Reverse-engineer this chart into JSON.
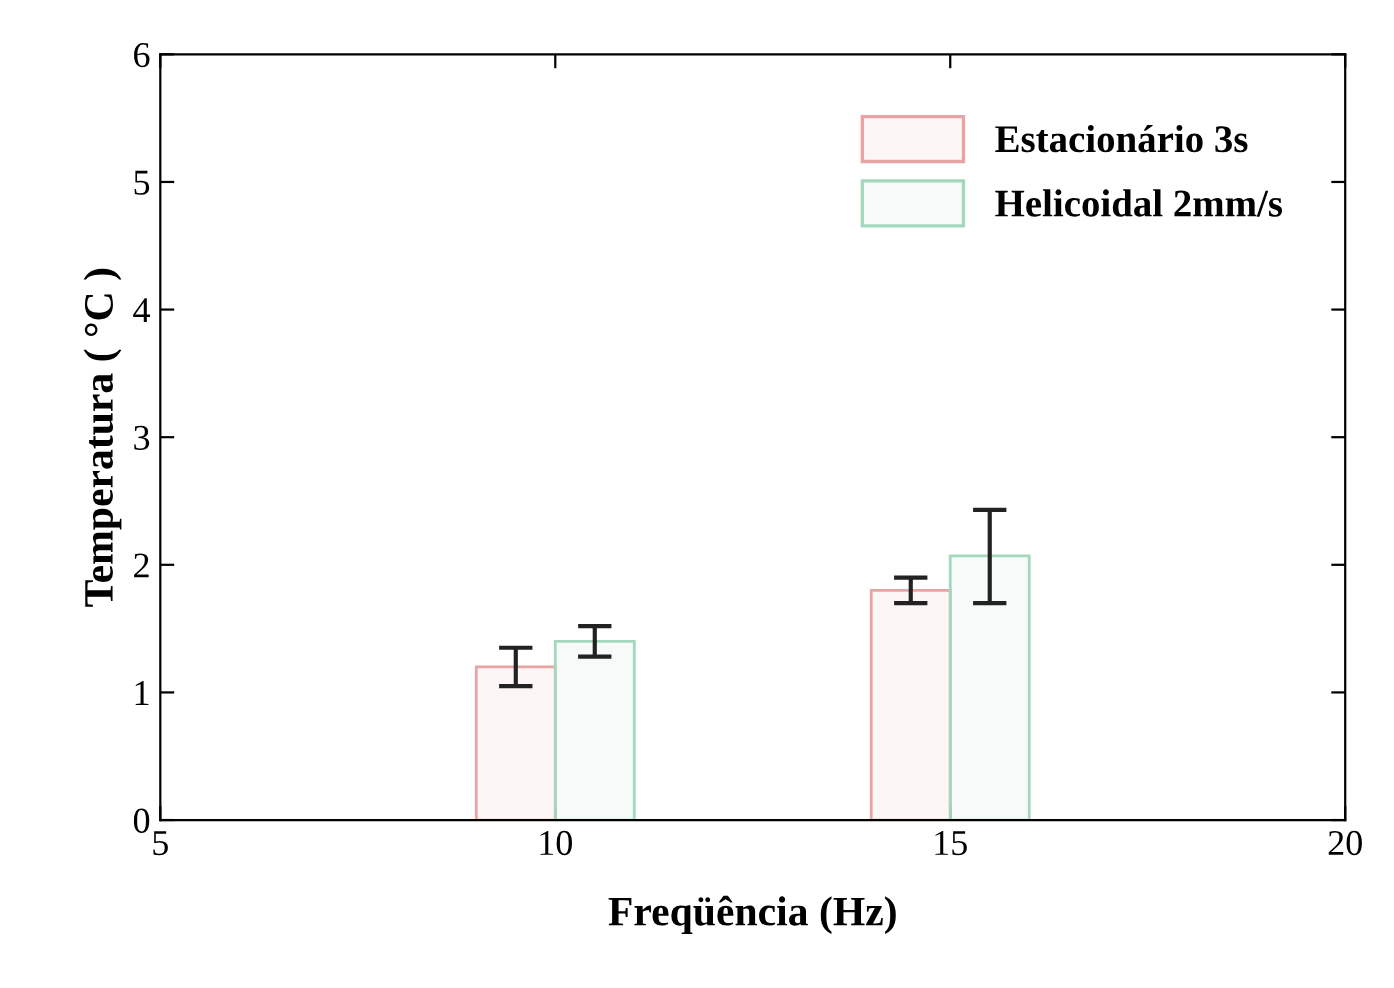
{
  "chart_data": {
    "type": "bar",
    "xlabel": "Freqüência (Hz)",
    "ylabel": "Temperatura ( °C )",
    "x": [
      10,
      15
    ],
    "series": [
      {
        "name": "Estacionário 3s",
        "color": "#e8a4a4",
        "values": [
          1.2,
          1.8
        ],
        "errors": [
          0.15,
          0.1
        ]
      },
      {
        "name": "Helicoidal 2mm/s",
        "color": "#a4d8bc",
        "values": [
          1.4,
          2.07
        ],
        "errors": [
          0.12,
          [
            1.7,
            2.43
          ]
        ]
      }
    ],
    "xlim": [
      5,
      20
    ],
    "xticks": [
      5,
      10,
      15,
      20
    ],
    "ylim": [
      0,
      6
    ],
    "yticks": [
      0,
      1,
      2,
      3,
      4,
      5,
      6
    ],
    "grid": false,
    "legend": "top right"
  }
}
